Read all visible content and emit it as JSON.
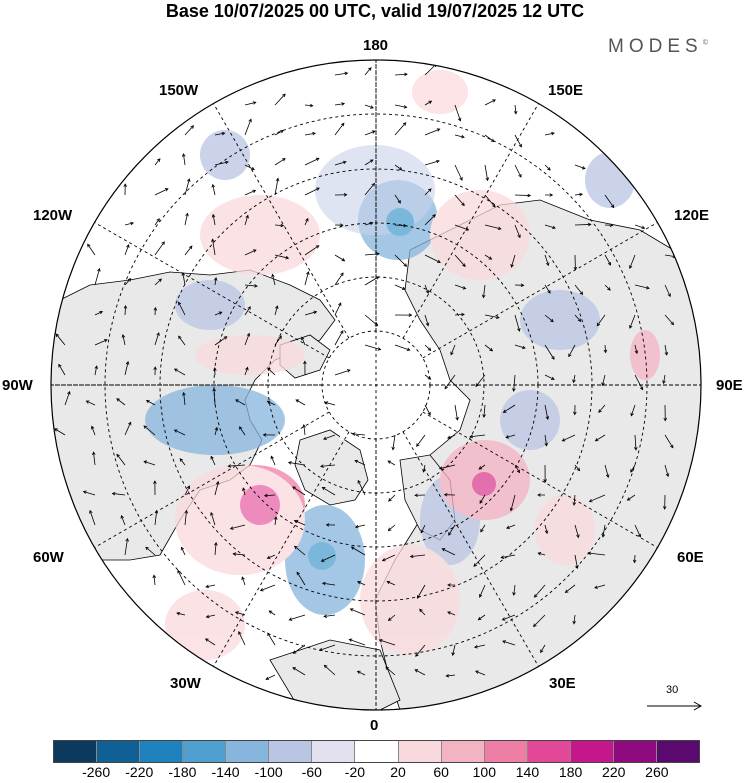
{
  "title": "Base 10/07/2025 00 UTC, valid 19/07/2025 12 UTC",
  "brand": "MODES",
  "brand_mark": "©",
  "longitude_labels": {
    "top": "180",
    "bottom": "0",
    "left": "90W",
    "right": "90E",
    "upper_left_1": "150W",
    "upper_left_2": "120W",
    "upper_right_1": "150E",
    "upper_right_2": "120E",
    "lower_left_1": "60W",
    "lower_left_2": "30W",
    "lower_right_1": "60E",
    "lower_right_2": "30E"
  },
  "reference_vector": {
    "label": "30"
  },
  "colorbar": {
    "ticks": [
      "-260",
      "-220",
      "-180",
      "-140",
      "-100",
      "-60",
      "-20",
      "20",
      "60",
      "100",
      "140",
      "180",
      "220",
      "260"
    ],
    "colors": [
      "#0b3a5e",
      "#105f95",
      "#1f82bf",
      "#4f9fd0",
      "#86b5de",
      "#b9c5e3",
      "#e3e1f0",
      "#ffffff",
      "#f9d9dd",
      "#f4b3c3",
      "#ee7ea6",
      "#e24798",
      "#c5168c",
      "#8f0a7e",
      "#5a0a6e"
    ]
  },
  "colors": {
    "land": "#e9e9e9",
    "ocean": "#ffffff",
    "coast": "#000000",
    "grid": "#000000"
  }
}
